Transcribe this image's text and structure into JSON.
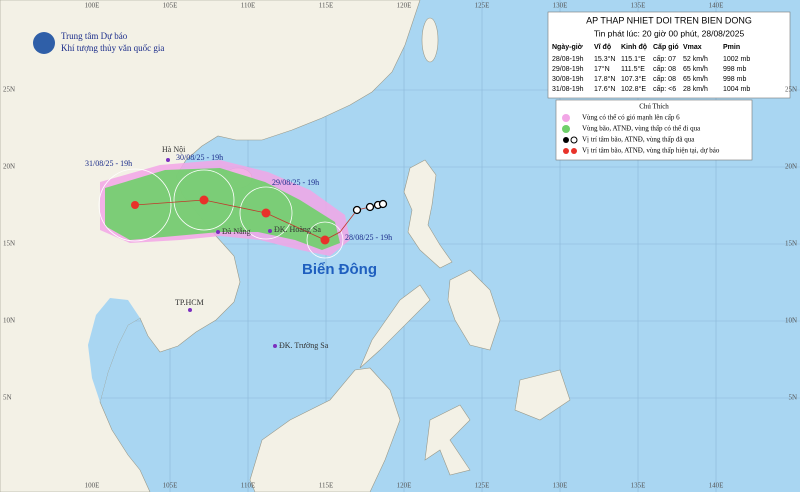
{
  "header": {
    "agency": [
      "Trung tâm Dự báo",
      "Khí tượng thủy văn quốc gia"
    ]
  },
  "bulletin": {
    "title": "AP THAP NHIET DOI TREN BIEN DONG",
    "issued": "Tin phát lúc: 20 giờ 00 phút, 28/08/2025",
    "columns": [
      "Ngày-giờ",
      "Vĩ độ",
      "Kinh độ",
      "Cấp gió",
      "Vmax",
      "Pmin"
    ],
    "rows": [
      [
        "28/08-19h",
        "15.3°N",
        "115.1°E",
        "cấp: 07",
        "52 km/h",
        "1002 mb"
      ],
      [
        "29/08-19h",
        "17°N",
        "111.5°E",
        "cấp: 08",
        "65 km/h",
        "998 mb"
      ],
      [
        "30/08-19h",
        "17.8°N",
        "107.3°E",
        "cấp: 08",
        "65 km/h",
        "998 mb"
      ],
      [
        "31/08-19h",
        "17.6°N",
        "102.8°E",
        "cấp: <6",
        "28 km/h",
        "1004 mb"
      ]
    ]
  },
  "legend": {
    "title": "Chú Thích",
    "items": [
      "Vùng có thể có gió mạnh lên cấp 6",
      "Vùng bão, ATNĐ, vùng thấp có thể đi qua",
      "Vị trí tâm bão, ATNĐ, vùng thấp đã qua",
      "Vị trí tâm bão, ATNĐ, vùng thấp hiện tại, dự báo"
    ]
  },
  "map": {
    "places": [
      "Hà Nội",
      "Đà Nẵng",
      "ĐK. Hoàng Sa",
      "TP.HCM",
      "ĐK. Trường Sa"
    ],
    "sea": "Biển Đông",
    "track_labels": [
      "31/08/25 - 19h",
      "30/08/25 - 19h",
      "29/08/25 - 19h",
      "28/08/25 - 19h"
    ],
    "longitudes": [
      "100E",
      "105E",
      "110E",
      "115E",
      "120E",
      "125E",
      "130E",
      "135E",
      "140E"
    ],
    "latitudes": [
      "25N",
      "20N",
      "15N",
      "10N",
      "5N"
    ]
  }
}
